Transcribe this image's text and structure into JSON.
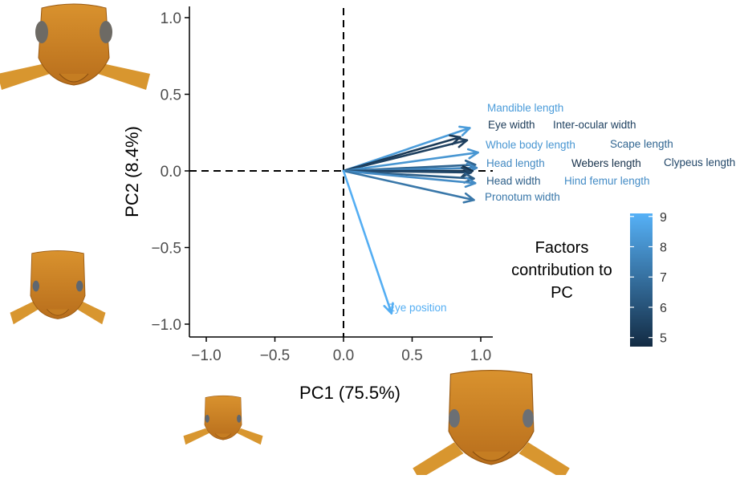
{
  "chart_data": {
    "type": "biplot",
    "xlabel": "PC1 (75.5%)",
    "ylabel": "PC2 (8.4%)",
    "xlim": [
      -1.1,
      1.1
    ],
    "ylim": [
      -1.1,
      1.1
    ],
    "xticks": [
      -1.0,
      -0.5,
      0.0,
      0.5,
      1.0
    ],
    "yticks": [
      -1.0,
      -0.5,
      0.0,
      0.5,
      1.0
    ],
    "xtick_labels": [
      "−1.0",
      "−0.5",
      "0.0",
      "0.5",
      "1.0"
    ],
    "ytick_labels": [
      "−1.0",
      "−0.5",
      "0.0",
      "0.5",
      "1.0"
    ],
    "reference_lines": {
      "x": 0,
      "y": 0,
      "style": "dashed"
    },
    "grid": false,
    "vectors": [
      {
        "label": "Mandible length",
        "x": 0.92,
        "y": 0.28,
        "contribution": 8.4
      },
      {
        "label": "Eye width",
        "x": 0.85,
        "y": 0.22,
        "contribution": 5.2
      },
      {
        "label": "Inter-ocular width",
        "x": 0.9,
        "y": 0.2,
        "contribution": 5.4
      },
      {
        "label": "Whole body length",
        "x": 0.98,
        "y": 0.12,
        "contribution": 8.2
      },
      {
        "label": "Scape length",
        "x": 0.96,
        "y": 0.04,
        "contribution": 6.6
      },
      {
        "label": "Head length",
        "x": 0.97,
        "y": 0.02,
        "contribution": 7.8
      },
      {
        "label": "Webers length",
        "x": 0.94,
        "y": 0.0,
        "contribution": 4.9
      },
      {
        "label": "Clypeus length",
        "x": 0.93,
        "y": -0.01,
        "contribution": 5.6
      },
      {
        "label": "Head width",
        "x": 0.95,
        "y": -0.05,
        "contribution": 6.4
      },
      {
        "label": "Hind femur length",
        "x": 0.96,
        "y": -0.08,
        "contribution": 7.9
      },
      {
        "label": "Pronotum width",
        "x": 0.95,
        "y": -0.19,
        "contribution": 7.2
      },
      {
        "label": "Eye position",
        "x": 0.35,
        "y": -0.93,
        "contribution": 9.0
      }
    ],
    "legend": {
      "title": "Factors contribution to PC",
      "title_lines": [
        "Factors",
        "contribution to",
        "PC"
      ],
      "min": 4.7,
      "max": 9.1,
      "ticks": [
        5,
        6,
        7,
        8,
        9
      ],
      "tick_labels": [
        "5",
        "6",
        "7",
        "8",
        "9"
      ],
      "color_low": "#132B43",
      "color_high": "#56B1F7",
      "position": "right"
    }
  },
  "images": [
    {
      "name": "ant-head-photo-top-left",
      "description": "ant head specimen photo"
    },
    {
      "name": "ant-head-photo-mid-left",
      "description": "ant head specimen photo"
    },
    {
      "name": "ant-head-photo-bottom-small",
      "description": "ant head specimen photo"
    },
    {
      "name": "ant-head-photo-bottom-large",
      "description": "ant head specimen photo"
    }
  ]
}
